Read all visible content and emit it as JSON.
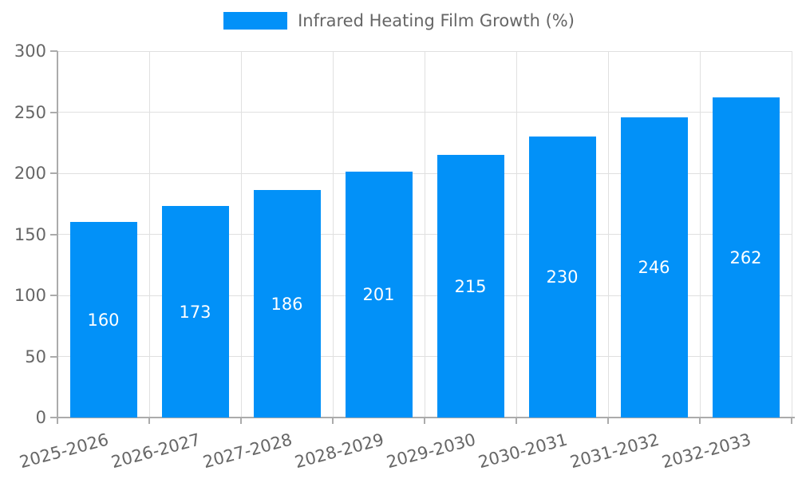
{
  "chart_data": {
    "type": "bar",
    "title": "",
    "categories": [
      "2025-2026",
      "2026-2027",
      "2027-2028",
      "2028-2029",
      "2029-2030",
      "2030-2031",
      "2031-2032",
      "2032-2033"
    ],
    "series": [
      {
        "name": "Infrared Heating Film Growth (%)",
        "values": [
          160,
          173,
          186,
          201,
          215,
          230,
          246,
          262
        ]
      }
    ],
    "value_labels": [
      "160",
      "173",
      "186",
      "201",
      "215",
      "230",
      "246",
      "262"
    ],
    "ylim": [
      0,
      300
    ],
    "yticks": [
      0,
      50,
      100,
      150,
      200,
      250,
      300
    ],
    "grid": true,
    "legend_position": "top-center",
    "xlabel": "",
    "ylabel": ""
  },
  "colors": {
    "bar": "#0291f8",
    "bar_value_text": "#ffffff",
    "axis_line": "#ababab",
    "gridline": "#e0e0e0",
    "tick_text": "#666666",
    "legend_text": "#666666"
  }
}
